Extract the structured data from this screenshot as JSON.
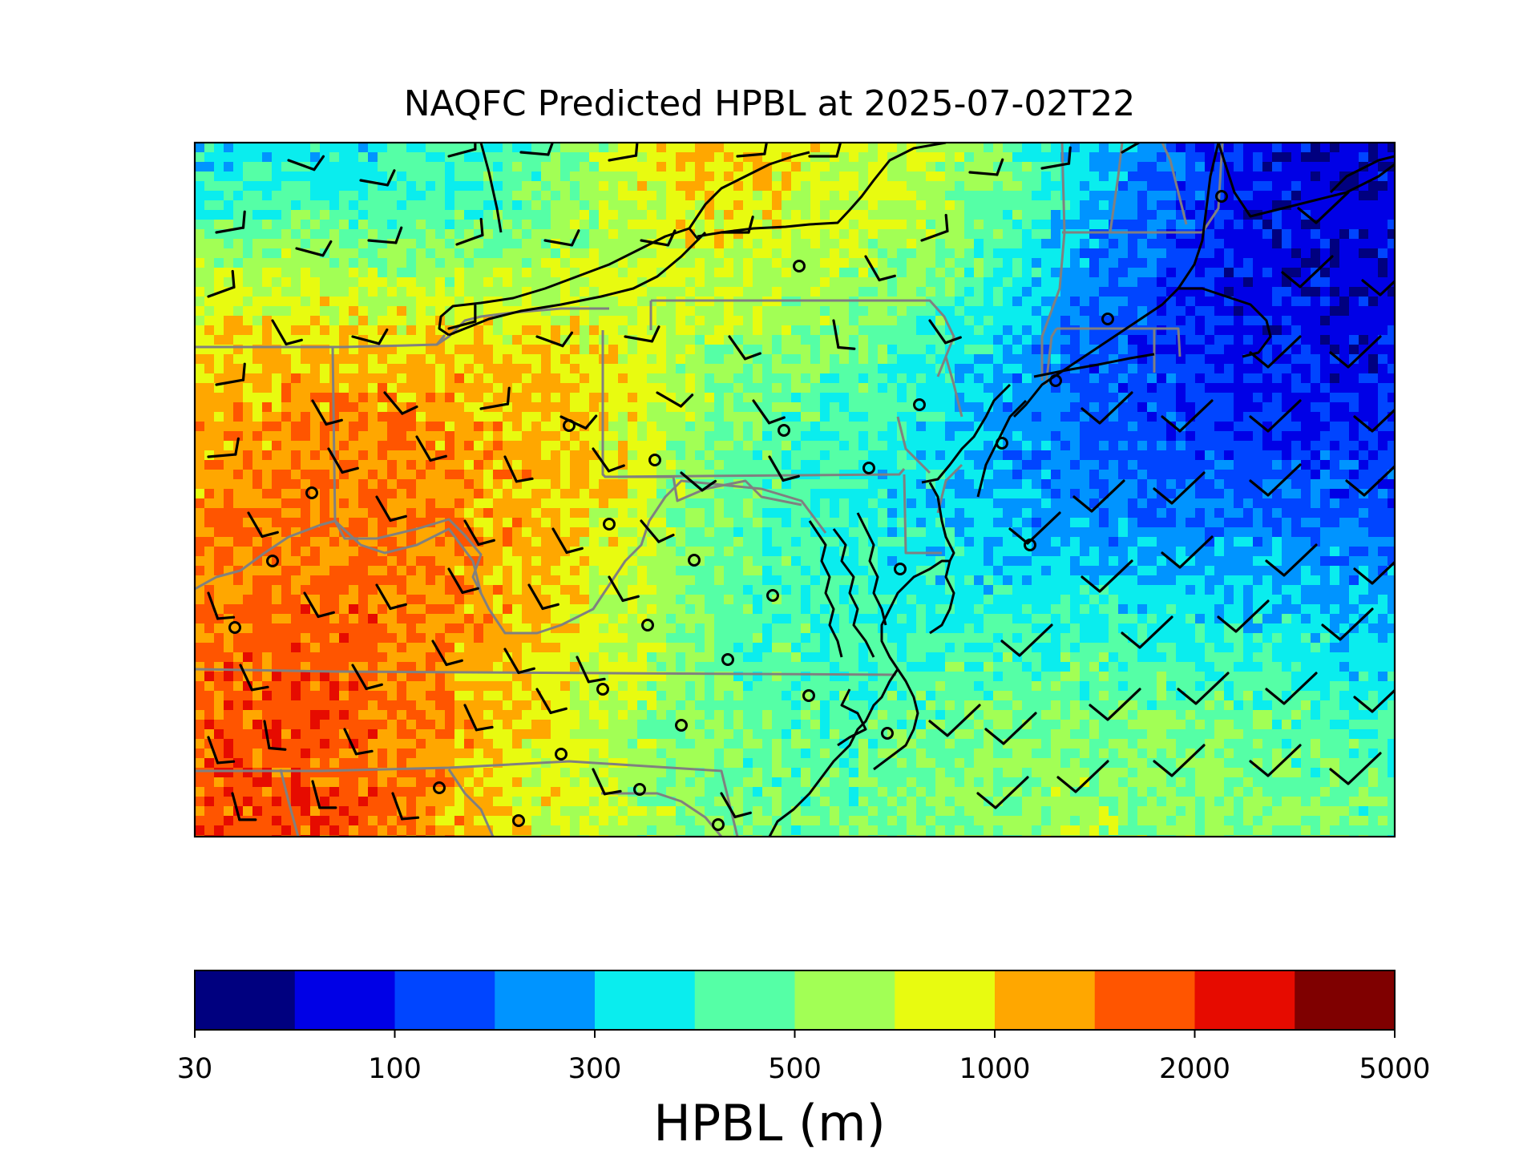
{
  "title": "NAQFC Predicted HPBL at 2025-07-02T22",
  "colorbar": {
    "label": "HPBL (m)",
    "tick_labels": [
      "30",
      "100",
      "300",
      "500",
      "1000",
      "2000",
      "5000"
    ],
    "colors": [
      "#00007f",
      "#0000e6",
      "#0045ff",
      "#0094ff",
      "#0aedee",
      "#55ffa6",
      "#a2ff55",
      "#e8fb10",
      "#ffa700",
      "#ff5500",
      "#e60b00",
      "#7f0000"
    ]
  },
  "map": {
    "field": "HPBL",
    "units": "m",
    "overlays": [
      "state-borders",
      "coastlines",
      "wind-barbs",
      "station-markers"
    ]
  }
}
